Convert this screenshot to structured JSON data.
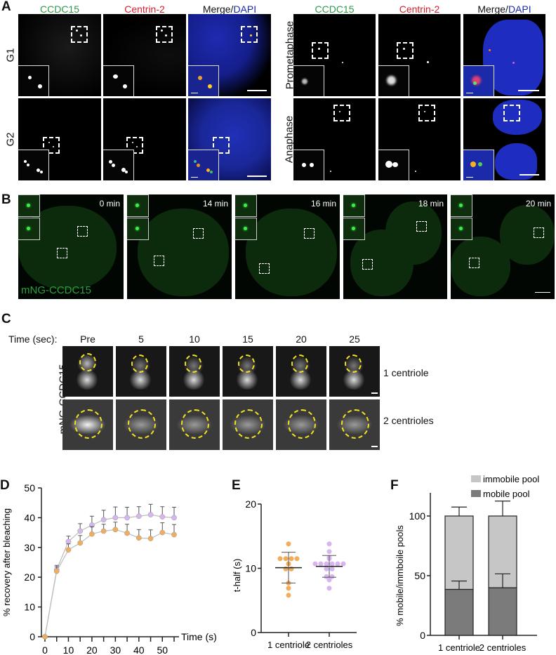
{
  "panel_A": {
    "label": "A",
    "channel_headers": {
      "ccdc15": "CCDC15",
      "centrin": "Centrin-2",
      "merge": "Merge/",
      "dapi": "DAPI"
    },
    "row_labels": {
      "g1": "G1",
      "g2": "G2",
      "prometaphase": "Prometaphase",
      "anaphase": "Anaphase"
    }
  },
  "panel_B": {
    "label": "B",
    "timepoints": [
      "0 min",
      "14 min",
      "16 min",
      "18 min",
      "20 min"
    ],
    "construct_label": "mNG-CCDC15"
  },
  "panel_C": {
    "label": "C",
    "time_header": "Time (sec):",
    "timepoints": [
      "Pre",
      "5",
      "10",
      "15",
      "20",
      "25"
    ],
    "row_label": "mNG-CCDC15",
    "row_conditions": [
      "1 centriole",
      "2 centrioles"
    ]
  },
  "colors": {
    "orange": "#f0ad5c",
    "purple": "#d7b6ef",
    "line_gray": "#bdbdbd",
    "immobile": "#c6c6c6",
    "mobile": "#7b7b7b",
    "green_label": "#2e9a47",
    "red_label": "#d4202a",
    "blue_label": "#1a2aa8"
  },
  "chart_data": [
    {
      "panel": "D",
      "type": "line",
      "title": "",
      "xlabel": "Time (s)",
      "ylabel": "% recovery after bleaching",
      "x": [
        0,
        5,
        10,
        15,
        20,
        25,
        30,
        35,
        40,
        45,
        50,
        55
      ],
      "x_ticks": [
        0,
        10,
        20,
        30,
        40,
        50
      ],
      "y_ticks": [
        0,
        10,
        20,
        30,
        40,
        50
      ],
      "xlim": [
        0,
        57
      ],
      "ylim": [
        0,
        50
      ],
      "grid": false,
      "series": [
        {
          "name": "2 centrioles",
          "color": "#d7b6ef",
          "values": [
            0,
            22.5,
            32,
            35.5,
            37.5,
            39.3,
            40,
            40,
            40.5,
            41,
            40.3,
            40
          ],
          "error": [
            0,
            1.5,
            1.8,
            2.5,
            3,
            3.2,
            3.6,
            3.5,
            3.2,
            3.5,
            3.4,
            3.5
          ]
        },
        {
          "name": "1 centriole",
          "color": "#f0ad5c",
          "values": [
            0,
            22,
            29.2,
            31.5,
            34.5,
            35.5,
            36,
            34.8,
            33.2,
            33,
            35,
            34.3
          ],
          "error": [
            0,
            1.5,
            2,
            2.5,
            2.5,
            2.3,
            2.5,
            3,
            2.8,
            2.9,
            3.3,
            3.4
          ]
        }
      ]
    },
    {
      "panel": "E",
      "type": "scatter",
      "title": "",
      "xlabel": "",
      "ylabel": "t-half (s)",
      "categories": [
        "1 centriole",
        "2 centrioles"
      ],
      "y_ticks": [
        0,
        10,
        20
      ],
      "ylim": [
        0,
        20
      ],
      "series": [
        {
          "name": "1 centriole",
          "color": "#f0ad5c",
          "values": [
            13.8,
            11.5,
            11.5,
            11.5,
            11.5,
            10.7,
            9.9,
            9.9,
            7.7,
            6.9,
            5.8
          ],
          "mean": 10.1,
          "sd_upper": 12.5,
          "sd_lower": 7.7
        },
        {
          "name": "2 centrioles",
          "color": "#d7b6ef",
          "values": [
            13.8,
            12.6,
            11.7,
            11.5,
            10.7,
            10.7,
            10.7,
            10.7,
            10.7,
            10.7,
            9.9,
            9.9,
            8.7,
            8.7,
            8.2,
            6.9
          ],
          "mean": 10.3,
          "sd_upper": 12.0,
          "sd_lower": 8.6
        }
      ]
    },
    {
      "panel": "F",
      "type": "bar",
      "stacked": true,
      "title": "",
      "xlabel": "",
      "ylabel": "% mobile/immboile pools",
      "categories": [
        "1 centriole",
        "2 centrioles"
      ],
      "y_ticks": [
        0,
        50,
        100
      ],
      "ylim": [
        0,
        120
      ],
      "legend": {
        "position": "top-right",
        "entries": [
          "immobile pool",
          "mobile pool"
        ]
      },
      "series": [
        {
          "name": "mobile pool",
          "color": "#7b7b7b",
          "values": [
            38.5,
            39.8
          ],
          "error_upper": [
            45.5,
            51.5
          ]
        },
        {
          "name": "immobile pool",
          "color": "#c6c6c6",
          "values": [
            61.5,
            60.2
          ],
          "error_upper": [
            107.5,
            112.5
          ]
        }
      ]
    }
  ]
}
